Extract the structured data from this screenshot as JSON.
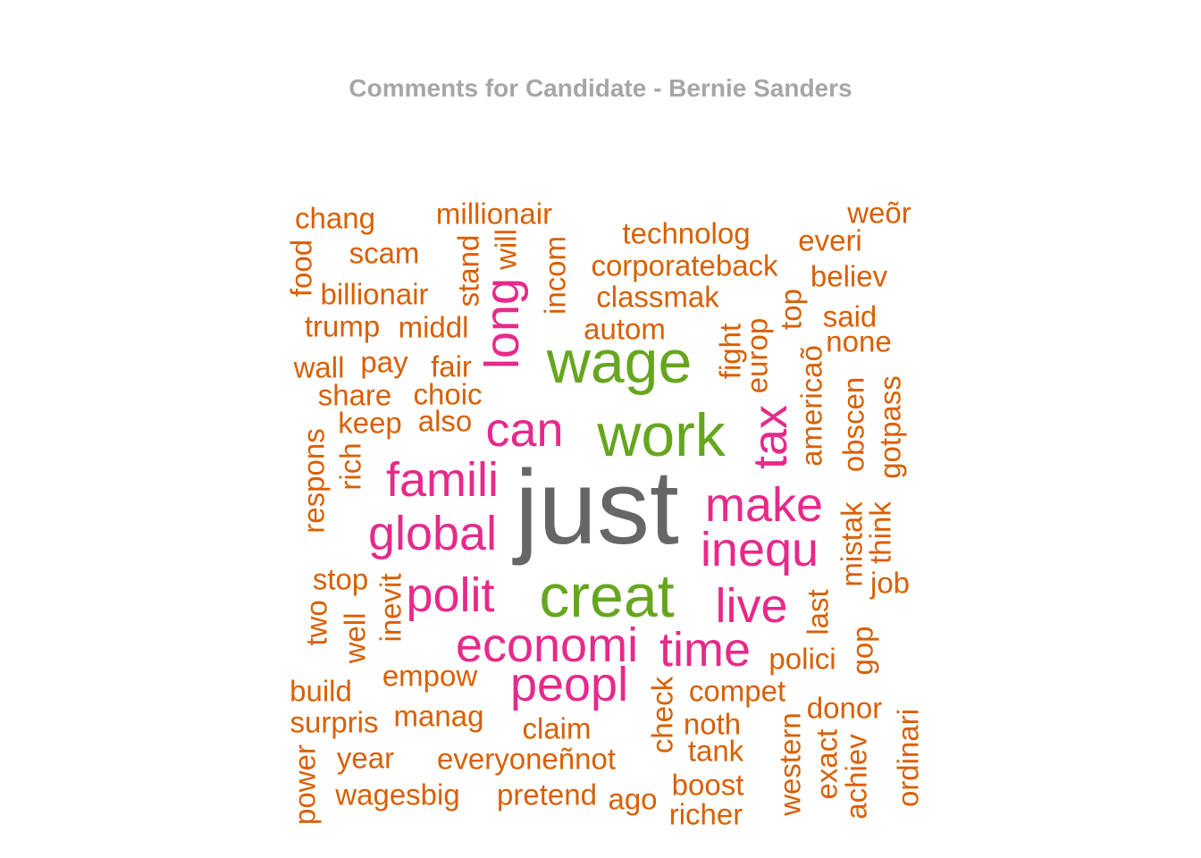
{
  "chart_data": {
    "type": "wordcloud",
    "title": "Comments for Candidate - Bernie Sanders",
    "colors": {
      "title": "#a6a6a6",
      "tier1": "#666666",
      "tier2": "#66a61e",
      "tier3": "#e7298a",
      "tier4": "#d95f02"
    },
    "words": [
      {
        "text": "just",
        "tier": 1
      },
      {
        "text": "wage",
        "tier": 2
      },
      {
        "text": "work",
        "tier": 2
      },
      {
        "text": "creat",
        "tier": 2
      },
      {
        "text": "famili",
        "tier": 3
      },
      {
        "text": "global",
        "tier": 3
      },
      {
        "text": "polit",
        "tier": 3
      },
      {
        "text": "economi",
        "tier": 3
      },
      {
        "text": "peopl",
        "tier": 3
      },
      {
        "text": "time",
        "tier": 3
      },
      {
        "text": "live",
        "tier": 3
      },
      {
        "text": "inequ",
        "tier": 3
      },
      {
        "text": "make",
        "tier": 3
      },
      {
        "text": "can",
        "tier": 3
      },
      {
        "text": "long",
        "tier": 3
      },
      {
        "text": "tax",
        "tier": 3
      },
      {
        "text": "chang",
        "tier": 4
      },
      {
        "text": "millionair",
        "tier": 4
      },
      {
        "text": "technolog",
        "tier": 4
      },
      {
        "text": "weõr",
        "tier": 4
      },
      {
        "text": "everi",
        "tier": 4
      },
      {
        "text": "scam",
        "tier": 4
      },
      {
        "text": "corporateback",
        "tier": 4
      },
      {
        "text": "believ",
        "tier": 4
      },
      {
        "text": "billionair",
        "tier": 4
      },
      {
        "text": "classmak",
        "tier": 4
      },
      {
        "text": "said",
        "tier": 4
      },
      {
        "text": "trump",
        "tier": 4
      },
      {
        "text": "middl",
        "tier": 4
      },
      {
        "text": "autom",
        "tier": 4
      },
      {
        "text": "none",
        "tier": 4
      },
      {
        "text": "wall",
        "tier": 4
      },
      {
        "text": "pay",
        "tier": 4
      },
      {
        "text": "fair",
        "tier": 4
      },
      {
        "text": "share",
        "tier": 4
      },
      {
        "text": "choic",
        "tier": 4
      },
      {
        "text": "keep",
        "tier": 4
      },
      {
        "text": "also",
        "tier": 4
      },
      {
        "text": "stop",
        "tier": 4
      },
      {
        "text": "job",
        "tier": 4
      },
      {
        "text": "empow",
        "tier": 4
      },
      {
        "text": "polici",
        "tier": 4
      },
      {
        "text": "build",
        "tier": 4
      },
      {
        "text": "compet",
        "tier": 4
      },
      {
        "text": "donor",
        "tier": 4
      },
      {
        "text": "surpris",
        "tier": 4
      },
      {
        "text": "manag",
        "tier": 4
      },
      {
        "text": "claim",
        "tier": 4
      },
      {
        "text": "noth",
        "tier": 4
      },
      {
        "text": "year",
        "tier": 4
      },
      {
        "text": "everyoneñnot",
        "tier": 4
      },
      {
        "text": "tank",
        "tier": 4
      },
      {
        "text": "boost",
        "tier": 4
      },
      {
        "text": "wagesbig",
        "tier": 4
      },
      {
        "text": "pretend",
        "tier": 4
      },
      {
        "text": "ago",
        "tier": 4
      },
      {
        "text": "richer",
        "tier": 4
      },
      {
        "text": "food",
        "tier": 4
      },
      {
        "text": "stand",
        "tier": 4
      },
      {
        "text": "will",
        "tier": 4
      },
      {
        "text": "incom",
        "tier": 4
      },
      {
        "text": "fight",
        "tier": 4
      },
      {
        "text": "europ",
        "tier": 4
      },
      {
        "text": "top",
        "tier": 4
      },
      {
        "text": "americaõ",
        "tier": 4
      },
      {
        "text": "obscen",
        "tier": 4
      },
      {
        "text": "gotpass",
        "tier": 4
      },
      {
        "text": "respons",
        "tier": 4
      },
      {
        "text": "rich",
        "tier": 4
      },
      {
        "text": "mistak",
        "tier": 4
      },
      {
        "text": "think",
        "tier": 4
      },
      {
        "text": "two",
        "tier": 4
      },
      {
        "text": "well",
        "tier": 4
      },
      {
        "text": "inevit",
        "tier": 4
      },
      {
        "text": "last",
        "tier": 4
      },
      {
        "text": "gop",
        "tier": 4
      },
      {
        "text": "check",
        "tier": 4
      },
      {
        "text": "western",
        "tier": 4
      },
      {
        "text": "exact",
        "tier": 4
      },
      {
        "text": "achiev",
        "tier": 4
      },
      {
        "text": "ordinari",
        "tier": 4
      },
      {
        "text": "power",
        "tier": 4
      }
    ]
  }
}
